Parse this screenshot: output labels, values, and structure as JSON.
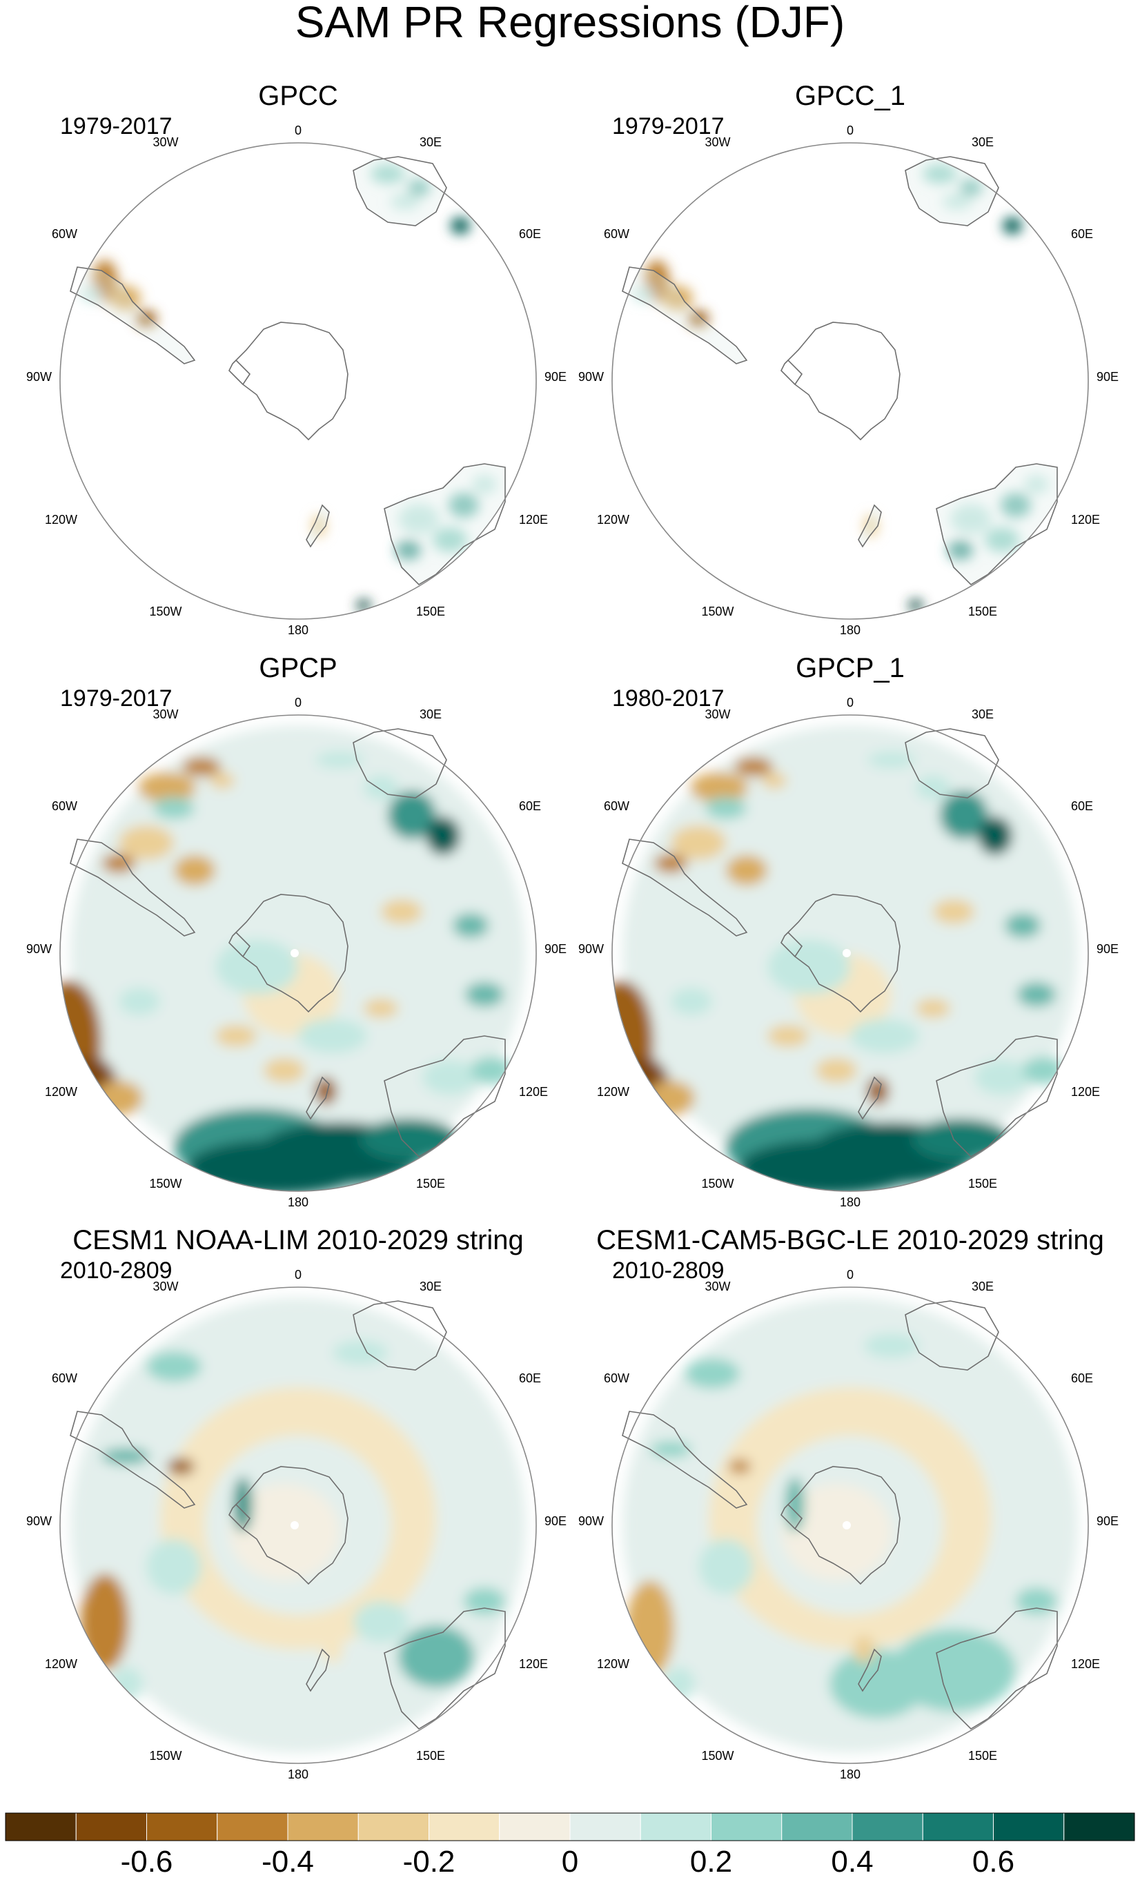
{
  "figure": {
    "title": "SAM PR Regressions (DJF)"
  },
  "panels": [
    {
      "title": "GPCC",
      "period": "1979-2017",
      "data_coverage": "land"
    },
    {
      "title": "GPCC_1",
      "period": "1979-2017",
      "data_coverage": "land"
    },
    {
      "title": "GPCP",
      "period": "1979-2017",
      "data_coverage": "global"
    },
    {
      "title": "GPCP_1",
      "period": "1980-2017",
      "data_coverage": "global"
    },
    {
      "title": "CESM1 NOAA-LIM 2010-2029 string",
      "period": "2010-2809",
      "data_coverage": "global"
    },
    {
      "title": "CESM1-CAM5-BGC-LE 2010-2029 string",
      "period": "2010-2809",
      "data_coverage": "global"
    }
  ],
  "longitude_labels": {
    "top": "0",
    "upper_right": "30E",
    "right_upper": "60E",
    "right": "90E",
    "right_lower": "120E",
    "lower_right": "150E",
    "bottom": "180",
    "lower_left": "150W",
    "left_lower": "120W",
    "left": "90W",
    "left_upper": "60W",
    "upper_left": "30W"
  },
  "colorbar": {
    "colors": [
      "#543005",
      "#7f4709",
      "#9c5f14",
      "#be8130",
      "#d9ac61",
      "#ebcf96",
      "#f5e6c3",
      "#f4efe2",
      "#e3efec",
      "#c3e8e1",
      "#93d4c8",
      "#67b8ac",
      "#37958a",
      "#177b70",
      "#015c52",
      "#003c30"
    ],
    "tick_labels": [
      "-0.6",
      "-0.4",
      "-0.2",
      "0",
      "0.2",
      "0.4",
      "0.6"
    ]
  }
}
